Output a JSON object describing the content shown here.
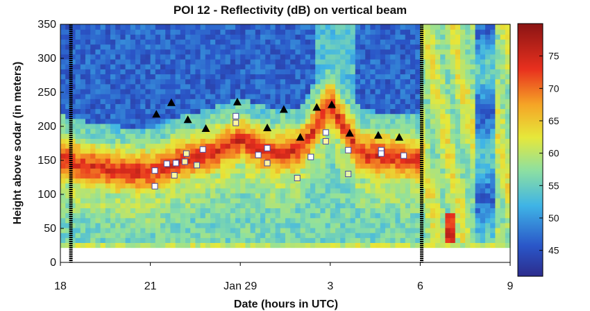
{
  "chart_data": {
    "type": "heatmap",
    "title": "POI 12 - Reflectivity (dB) on vertical beam",
    "xlabel": "Date (hours in UTC)",
    "ylabel": "Height above sodar (in meters)",
    "x_ticks": [
      "18",
      "21",
      "Jan 29",
      "3",
      "6",
      "9"
    ],
    "x_tick_hours": [
      18,
      21,
      24,
      27,
      30,
      33
    ],
    "xlim_hours": [
      18,
      33
    ],
    "ylim": [
      0,
      350
    ],
    "y_ticks": [
      0,
      50,
      100,
      150,
      200,
      250,
      300,
      350
    ],
    "colorbar": {
      "ticks": [
        45,
        50,
        55,
        60,
        65,
        70,
        75
      ],
      "range": [
        41,
        80
      ]
    },
    "vertical_markers_hours": [
      18.35,
      30.05
    ],
    "triangles": [
      {
        "x": 21.2,
        "y": 218
      },
      {
        "x": 21.7,
        "y": 235
      },
      {
        "x": 22.25,
        "y": 210
      },
      {
        "x": 22.85,
        "y": 197
      },
      {
        "x": 23.9,
        "y": 236
      },
      {
        "x": 24.9,
        "y": 198
      },
      {
        "x": 25.45,
        "y": 225
      },
      {
        "x": 26.0,
        "y": 184
      },
      {
        "x": 26.55,
        "y": 228
      },
      {
        "x": 27.05,
        "y": 232
      },
      {
        "x": 27.65,
        "y": 190
      },
      {
        "x": 28.6,
        "y": 187
      },
      {
        "x": 29.3,
        "y": 184
      }
    ],
    "squares": [
      {
        "x": 21.15,
        "y": 135,
        "c": "#ffffff"
      },
      {
        "x": 21.15,
        "y": 112,
        "c": "#ffffff"
      },
      {
        "x": 21.55,
        "y": 145,
        "c": "#ffffff"
      },
      {
        "x": 21.8,
        "y": 128,
        "c": "#fffca0"
      },
      {
        "x": 21.85,
        "y": 146,
        "c": "#ffffff"
      },
      {
        "x": 22.2,
        "y": 160,
        "c": "#fff7a0"
      },
      {
        "x": 22.15,
        "y": 148,
        "c": "#fff0a0"
      },
      {
        "x": 22.55,
        "y": 143,
        "c": "#e6f5a8"
      },
      {
        "x": 22.75,
        "y": 166,
        "c": "#ffffff"
      },
      {
        "x": 23.85,
        "y": 215,
        "c": "#ffffff"
      },
      {
        "x": 23.85,
        "y": 205,
        "c": "#fff5a0"
      },
      {
        "x": 24.6,
        "y": 158,
        "c": "#ffffff"
      },
      {
        "x": 24.9,
        "y": 146,
        "c": "#fff5a0"
      },
      {
        "x": 24.9,
        "y": 168,
        "c": "#ffffff"
      },
      {
        "x": 25.9,
        "y": 124,
        "c": "#fff5a0"
      },
      {
        "x": 26.35,
        "y": 155,
        "c": "#ffffff"
      },
      {
        "x": 26.85,
        "y": 191,
        "c": "#ffffff"
      },
      {
        "x": 26.85,
        "y": 178,
        "c": "#fff5a0"
      },
      {
        "x": 27.6,
        "y": 165,
        "c": "#ffffff"
      },
      {
        "x": 27.6,
        "y": 130,
        "c": "#e6f5a8"
      },
      {
        "x": 28.7,
        "y": 165,
        "c": "#ffffff"
      },
      {
        "x": 28.7,
        "y": 160,
        "c": "#ffffff"
      },
      {
        "x": 29.45,
        "y": 157,
        "c": "#ffffff"
      }
    ]
  }
}
